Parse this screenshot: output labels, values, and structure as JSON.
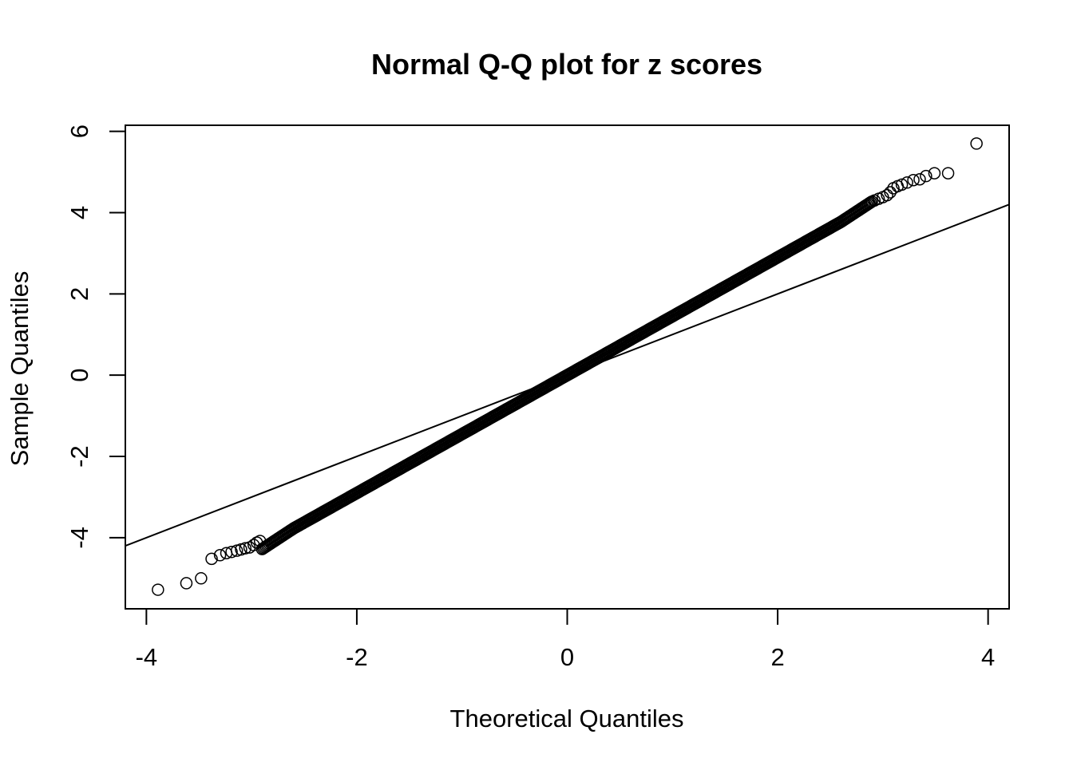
{
  "chart_data": {
    "type": "scatter",
    "title": "Normal Q-Q plot for z scores",
    "xlabel": "Theoretical Quantiles",
    "ylabel": "Sample Quantiles",
    "xlim": [
      -4.2,
      4.2
    ],
    "ylim": [
      -5.75,
      6.15
    ],
    "x_ticks": [
      -4,
      -2,
      0,
      2,
      4
    ],
    "x_tick_labels": [
      "-4",
      "-2",
      "0",
      "2",
      "4"
    ],
    "y_ticks": [
      -4,
      -2,
      0,
      2,
      4,
      6
    ],
    "y_tick_labels": [
      "-4",
      "-2",
      "0",
      "2",
      "4",
      "6"
    ],
    "grid": false,
    "legend": "none",
    "reference_line": {
      "intercept": 0,
      "slope": 1.0
    },
    "body_slope": 1.45,
    "series": [
      {
        "marker": "open-circle",
        "points": [
          [
            -3.89,
            -5.28
          ],
          [
            -3.62,
            -5.12
          ],
          [
            -3.48,
            -5.0
          ],
          [
            -3.38,
            -4.52
          ],
          [
            -3.3,
            -4.43
          ],
          [
            -3.24,
            -4.38
          ],
          [
            -3.19,
            -4.35
          ],
          [
            -3.14,
            -4.32
          ],
          [
            -3.1,
            -4.29
          ],
          [
            -3.06,
            -4.26
          ],
          [
            -3.02,
            -4.24
          ],
          [
            -2.98,
            -4.18
          ],
          [
            -2.95,
            -4.12
          ],
          [
            -2.92,
            -4.08
          ],
          [
            2.92,
            4.3
          ],
          [
            2.96,
            4.34
          ],
          [
            3.0,
            4.38
          ],
          [
            3.04,
            4.43
          ],
          [
            3.07,
            4.5
          ],
          [
            3.1,
            4.6
          ],
          [
            3.14,
            4.65
          ],
          [
            3.18,
            4.69
          ],
          [
            3.23,
            4.74
          ],
          [
            3.29,
            4.8
          ],
          [
            3.35,
            4.82
          ],
          [
            3.41,
            4.9
          ],
          [
            3.49,
            4.97
          ],
          [
            3.62,
            4.97
          ],
          [
            3.89,
            5.7
          ]
        ]
      }
    ]
  }
}
